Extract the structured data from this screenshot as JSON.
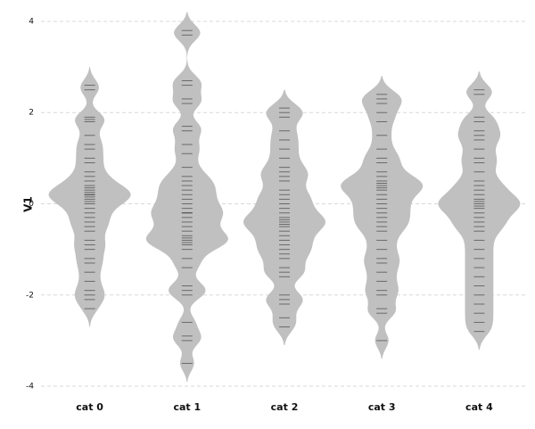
{
  "chart_data": {
    "type": "beanplot",
    "y_label": "V1",
    "categories": [
      "cat 0",
      "cat 1",
      "cat 2",
      "cat 3",
      "cat 4"
    ],
    "values": [
      [
        2.6,
        2.5,
        1.9,
        1.85,
        1.8,
        1.5,
        1.3,
        1.2,
        1.0,
        0.9,
        0.7,
        0.6,
        0.5,
        0.4,
        0.35,
        0.3,
        0.25,
        0.2,
        0.2,
        0.15,
        0.1,
        0.05,
        0,
        -0.1,
        -0.2,
        -0.3,
        -0.4,
        -0.5,
        -0.6,
        -0.8,
        -0.9,
        -1.0,
        -1.2,
        -1.3,
        -1.5,
        -1.7,
        -1.9,
        -2.0,
        -2.1,
        -2.3
      ],
      [
        3.8,
        3.7,
        2.7,
        2.6,
        2.3,
        2.2,
        1.7,
        1.6,
        1.3,
        1.1,
        0.8,
        0.6,
        0.5,
        0.4,
        0.3,
        0.2,
        0.1,
        0,
        -0.1,
        -0.2,
        -0.2,
        -0.3,
        -0.4,
        -0.5,
        -0.6,
        -0.7,
        -0.75,
        -0.8,
        -0.85,
        -0.9,
        -1.0,
        -1.2,
        -1.4,
        -1.8,
        -1.9,
        -2.0,
        -2.6,
        -2.9,
        -3.0,
        -3.5
      ],
      [
        2.1,
        2.0,
        1.9,
        1.6,
        1.4,
        1.2,
        1.0,
        0.8,
        0.7,
        0.6,
        0.5,
        0.3,
        0.2,
        0.1,
        0,
        -0.1,
        -0.2,
        -0.3,
        -0.35,
        -0.4,
        -0.45,
        -0.5,
        -0.6,
        -0.7,
        -0.8,
        -0.9,
        -1.0,
        -1.1,
        -1.2,
        -1.4,
        -1.5,
        -1.6,
        -2.0,
        -2.1,
        -2.2,
        -2.5,
        -2.7
      ],
      [
        2.4,
        2.3,
        2.2,
        2.0,
        1.8,
        1.5,
        1.2,
        1.0,
        0.9,
        0.7,
        0.6,
        0.5,
        0.45,
        0.4,
        0.35,
        0.3,
        0.2,
        0.1,
        0,
        -0.1,
        -0.2,
        -0.3,
        -0.4,
        -0.5,
        -0.6,
        -0.8,
        -1.0,
        -1.2,
        -1.3,
        -1.5,
        -1.7,
        -1.9,
        -2.0,
        -2.3,
        -2.4,
        -3.0
      ],
      [
        2.5,
        2.4,
        1.9,
        1.8,
        1.6,
        1.5,
        1.4,
        1.2,
        1.0,
        0.9,
        0.7,
        0.5,
        0.4,
        0.3,
        0.2,
        0.1,
        0.05,
        0,
        -0.05,
        -0.1,
        -0.2,
        -0.3,
        -0.4,
        -0.5,
        -0.6,
        -0.8,
        -1.0,
        -1.2,
        -1.4,
        -1.6,
        -1.8,
        -2.0,
        -2.2,
        -2.4,
        -2.6,
        -2.8
      ]
    ],
    "color": "#c0c0c0",
    "line_color": "#222222",
    "ylim": [
      -4.3,
      4.3
    ],
    "yticks": [
      -4,
      -2,
      0,
      2,
      4
    ],
    "grid": true
  }
}
